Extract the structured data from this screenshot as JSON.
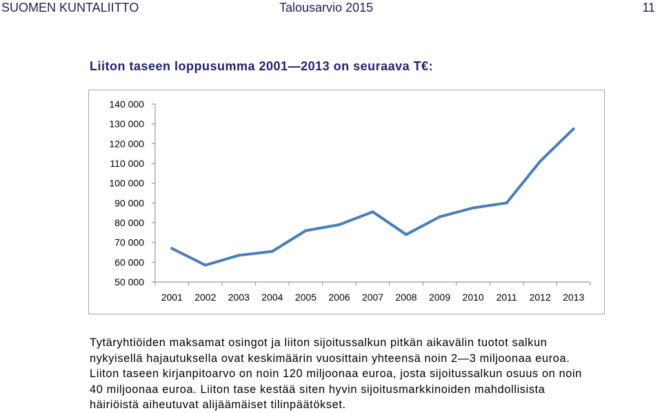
{
  "header": {
    "organization": "SUOMEN KUNTALIITTO",
    "document": "Talousarvio 2015",
    "page_number": "11"
  },
  "section_title": "Liiton taseen loppusumma 2001—2013 on seuraava T€:",
  "chart_data": {
    "type": "line",
    "title": "",
    "xlabel": "",
    "ylabel": "",
    "categories": [
      "2001",
      "2002",
      "2003",
      "2004",
      "2005",
      "2006",
      "2007",
      "2008",
      "2009",
      "2010",
      "2011",
      "2012",
      "2013"
    ],
    "series": [
      {
        "values": [
          67000,
          58500,
          63500,
          65500,
          76000,
          79000,
          85500,
          74000,
          83000,
          87500,
          90000,
          111000,
          127500
        ]
      }
    ],
    "ylim": [
      50000,
      140000
    ],
    "yticks": [
      50000,
      60000,
      70000,
      80000,
      90000,
      100000,
      110000,
      120000,
      130000,
      140000
    ],
    "ytick_labels": [
      "50 000",
      "60 000",
      "70 000",
      "80 000",
      "90 000",
      "100 000",
      "110 000",
      "120 000",
      "130 000",
      "140 000"
    ],
    "grid": false,
    "legend": "none",
    "line_color": "#4a7ebb"
  },
  "body_paragraph": "Tytäryhtiöiden maksamat osingot ja liiton sijoitussalkun pitkän aikavälin tuotot salkun\nnykyisellä hajautuksella ovat keskimäärin vuosittain yhteensä noin 2—3 miljoonaa euroa.\nLiiton taseen kirjanpitoarvo on noin 120 miljoonaa euroa, josta sijoitussalkun osuus on noin\n40 miljoonaa euroa. Liiton tase kestää siten hyvin sijoitusmarkkinoiden mahdollisista\nhäiriöistä aiheutuvat alijäämäiset tilinpäätökset."
}
